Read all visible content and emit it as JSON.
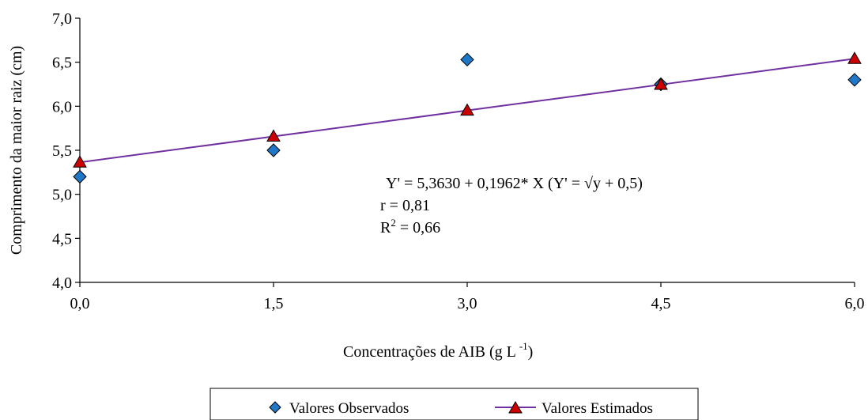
{
  "chart_data": {
    "type": "scatter",
    "xlabel": "Concentrações de AIB (g L",
    "xlabel_sup": "-1",
    "xlabel_end": ")",
    "ylabel": "Comprimento da  maior raiz (cm)",
    "xlim": [
      0,
      6
    ],
    "ylim": [
      4,
      7
    ],
    "x_ticks": [
      "0,0",
      "1,5",
      "3,0",
      "4,5",
      "6,0"
    ],
    "y_ticks": [
      "4,0",
      "4,5",
      "5,0",
      "5,5",
      "6,0",
      "6,5",
      "7,0"
    ],
    "grid": false,
    "legend_position": "bottom",
    "series": [
      {
        "name": "Valores Observados",
        "marker": "diamond",
        "color": "#1f77c8",
        "x": [
          0,
          1.5,
          3,
          4.5,
          6
        ],
        "y": [
          5.2,
          5.5,
          6.53,
          6.25,
          6.3
        ]
      },
      {
        "name": "Valores Estimados",
        "marker": "triangle",
        "line": true,
        "color": "#cc0000",
        "line_color": "#7030a0",
        "x": [
          0,
          1.5,
          3,
          4.5,
          6
        ],
        "y": [
          5.363,
          5.657,
          5.952,
          6.246,
          6.54
        ]
      }
    ],
    "annotations": [
      "Y' = 5,3630 + 0,1962* X (Y' = √y + 0,5)",
      "r = 0,81",
      "R",
      "2",
      " = 0,66"
    ]
  }
}
